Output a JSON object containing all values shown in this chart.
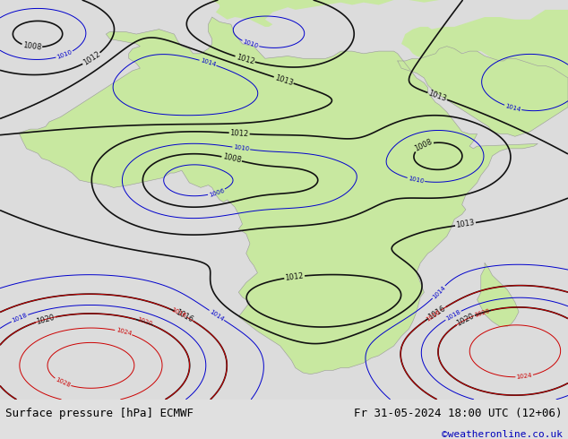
{
  "title_left": "Surface pressure [hPa] ECMWF",
  "title_right": "Fr 31-05-2024 18:00 UTC (12+06)",
  "watermark": "©weatheronline.co.uk",
  "figsize": [
    6.34,
    4.9
  ],
  "dpi": 100,
  "bg_color": "#e8e8e8",
  "ocean_color": "#dcdcdc",
  "land_color": "#c8e8a0",
  "bottom_bar_color": "#e0e0e0",
  "bottom_text_color": "#000000",
  "watermark_color": "#0000bb",
  "font_size_bottom": 9,
  "font_size_watermark": 8,
  "black_lw": 1.2,
  "blue_lw": 0.7,
  "red_lw": 0.7,
  "label_fs": 6,
  "xlim": [
    -20,
    55
  ],
  "ylim": [
    -40,
    42
  ]
}
